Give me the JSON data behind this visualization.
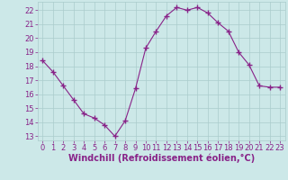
{
  "x": [
    0,
    1,
    2,
    3,
    4,
    5,
    6,
    7,
    8,
    9,
    10,
    11,
    12,
    13,
    14,
    15,
    16,
    17,
    18,
    19,
    20,
    21,
    22,
    23
  ],
  "y": [
    18.4,
    17.6,
    16.6,
    15.6,
    14.6,
    14.3,
    13.8,
    13.0,
    14.1,
    16.4,
    19.3,
    20.5,
    21.6,
    22.2,
    22.0,
    22.2,
    21.8,
    21.1,
    20.5,
    19.0,
    18.1,
    16.6,
    16.5,
    16.5
  ],
  "line_color": "#882288",
  "marker": "+",
  "bg_color": "#cce8e8",
  "grid_color": "#aacccc",
  "xlabel": "Windchill (Refroidissement éolien,°C)",
  "xlabel_color": "#882288",
  "tick_color": "#882288",
  "tick_label_color": "#882288",
  "ylim": [
    12.7,
    22.6
  ],
  "xlim": [
    -0.5,
    23.5
  ],
  "yticks": [
    13,
    14,
    15,
    16,
    17,
    18,
    19,
    20,
    21,
    22
  ],
  "xticks": [
    0,
    1,
    2,
    3,
    4,
    5,
    6,
    7,
    8,
    9,
    10,
    11,
    12,
    13,
    14,
    15,
    16,
    17,
    18,
    19,
    20,
    21,
    22,
    23
  ],
  "ylabel_fontsize": 6,
  "xlabel_fontsize": 7,
  "tick_fontsize": 6
}
